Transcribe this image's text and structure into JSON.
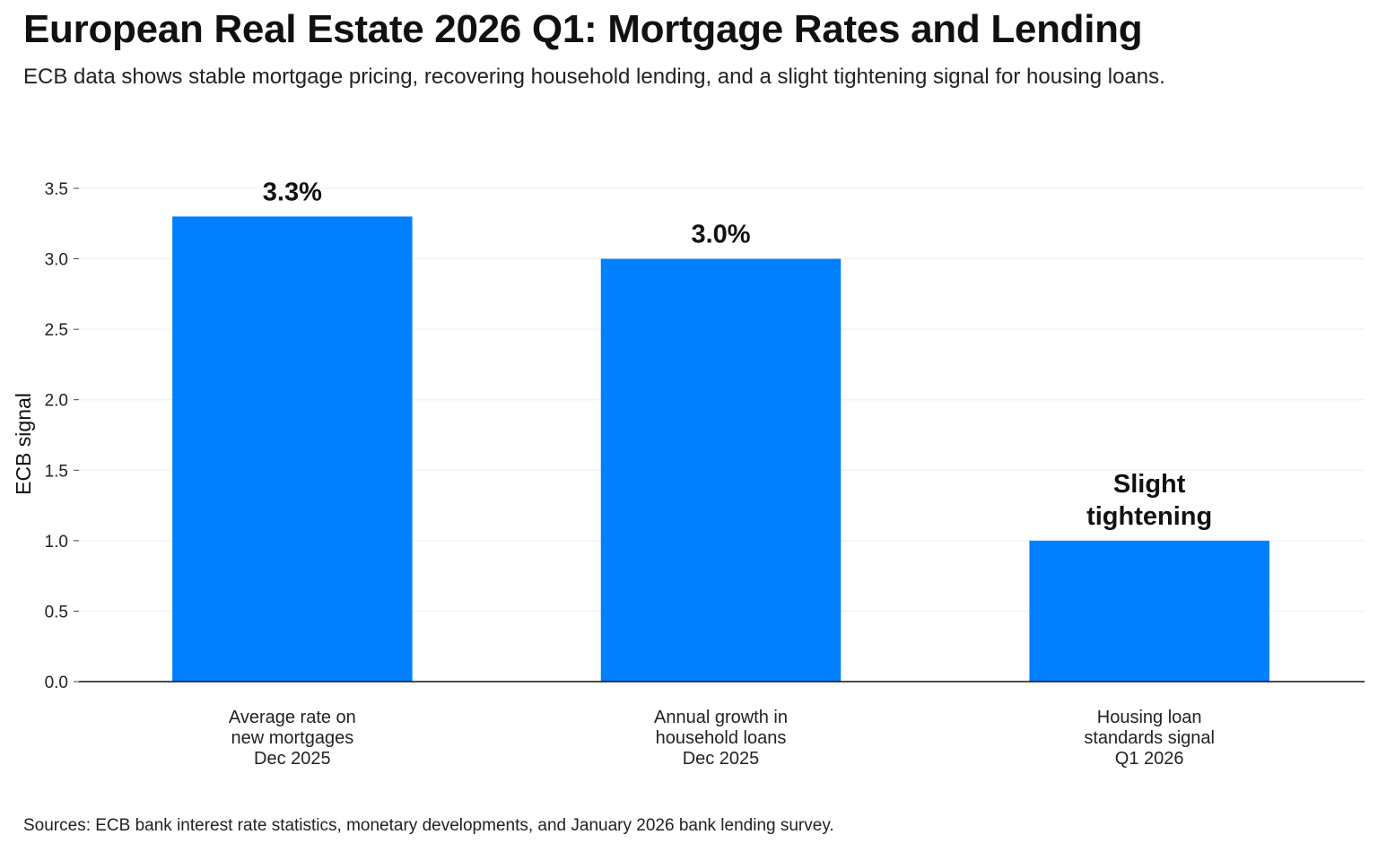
{
  "header": {
    "title": "European Real Estate 2026 Q1: Mortgage Rates and Lending",
    "subtitle": "ECB data shows stable mortgage pricing, recovering household lending, and a slight tightening signal for housing loans."
  },
  "footer": {
    "source": "Sources: ECB bank interest rate statistics, monetary developments, and January 2026 bank lending survey."
  },
  "chart_data": {
    "type": "bar",
    "title": "European Real Estate 2026 Q1: Mortgage Rates and Lending",
    "subtitle": "ECB data shows stable mortgage pricing, recovering household lending, and a slight tightening signal for housing loans.",
    "ylabel": "ECB signal",
    "xlabel": "",
    "ylim": [
      0,
      3.5
    ],
    "yticks": [
      0.0,
      0.5,
      1.0,
      1.5,
      2.0,
      2.5,
      3.0,
      3.5
    ],
    "ytick_labels": [
      "0.0",
      "0.5",
      "1.0",
      "1.5",
      "2.0",
      "2.5",
      "3.0",
      "3.5"
    ],
    "grid": true,
    "categories": [
      [
        "Average rate on",
        "new mortgages",
        "Dec 2025"
      ],
      [
        "Annual growth in",
        "household loans",
        "Dec 2025"
      ],
      [
        "Housing loan",
        "standards signal",
        "Q1 2026"
      ]
    ],
    "values": [
      3.3,
      3.0,
      1.0
    ],
    "data_labels": [
      [
        "3.3%"
      ],
      [
        "3.0%"
      ],
      [
        "Slight",
        "tightening"
      ]
    ],
    "bar_color": "#0080ff",
    "axis_color": "#111111",
    "grid_color": "#eeeeee"
  }
}
